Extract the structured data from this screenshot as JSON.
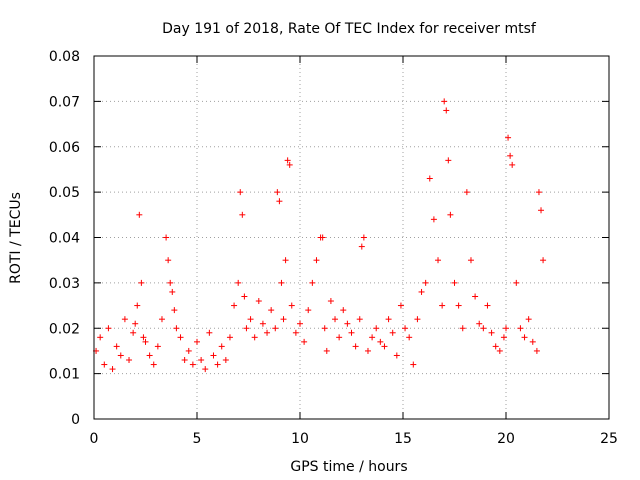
{
  "chart_data": {
    "type": "scatter",
    "title": "Day 191 of 2018, Rate Of TEC Index for receiver mtsf",
    "xlabel": "GPS time / hours",
    "ylabel": "ROTI / TECUs",
    "xlim": [
      0,
      25
    ],
    "ylim": [
      0,
      0.08
    ],
    "xticks": [
      0,
      5,
      10,
      15,
      20,
      25
    ],
    "xtick_labels": [
      "0",
      "5",
      "10",
      "15",
      "20",
      "25"
    ],
    "yticks": [
      0,
      0.01,
      0.02,
      0.03,
      0.04,
      0.05,
      0.06,
      0.07,
      0.08
    ],
    "ytick_labels": [
      "0",
      "0.01",
      "0.02",
      "0.03",
      "0.04",
      "0.05",
      "0.06",
      "0.07",
      "0.08"
    ],
    "grid": true,
    "legend": "none",
    "marker": "+",
    "series": [
      {
        "name": "ROTI",
        "color": "#ff0000",
        "x": [
          0.1,
          0.3,
          0.5,
          0.7,
          0.9,
          1.1,
          1.3,
          1.5,
          1.7,
          1.9,
          2.0,
          2.1,
          2.2,
          2.3,
          2.4,
          2.5,
          2.7,
          2.9,
          3.1,
          3.3,
          3.5,
          3.6,
          3.7,
          3.8,
          3.9,
          4.0,
          4.2,
          4.4,
          4.6,
          4.8,
          5.0,
          5.2,
          5.4,
          5.6,
          5.8,
          6.0,
          6.2,
          6.4,
          6.6,
          6.8,
          7.0,
          7.1,
          7.2,
          7.3,
          7.4,
          7.6,
          7.8,
          8.0,
          8.2,
          8.4,
          8.6,
          8.8,
          8.9,
          9.0,
          9.1,
          9.2,
          9.3,
          9.4,
          9.5,
          9.6,
          9.8,
          10.0,
          10.2,
          10.4,
          10.6,
          10.8,
          11.0,
          11.1,
          11.2,
          11.3,
          11.5,
          11.7,
          11.9,
          12.1,
          12.3,
          12.5,
          12.7,
          12.9,
          13.0,
          13.1,
          13.3,
          13.5,
          13.7,
          13.9,
          14.1,
          14.3,
          14.5,
          14.7,
          14.9,
          15.1,
          15.3,
          15.5,
          15.7,
          15.9,
          16.1,
          16.3,
          16.5,
          16.7,
          16.9,
          17.0,
          17.1,
          17.2,
          17.3,
          17.5,
          17.7,
          17.9,
          18.1,
          18.3,
          18.5,
          18.7,
          18.9,
          19.1,
          19.3,
          19.5,
          19.7,
          19.9,
          20.0,
          20.1,
          20.2,
          20.3,
          20.5,
          20.7,
          20.9,
          21.1,
          21.3,
          21.5,
          21.6,
          21.7,
          21.8
        ],
        "y": [
          0.015,
          0.018,
          0.012,
          0.02,
          0.011,
          0.016,
          0.014,
          0.022,
          0.013,
          0.019,
          0.021,
          0.025,
          0.045,
          0.03,
          0.018,
          0.017,
          0.014,
          0.012,
          0.016,
          0.022,
          0.04,
          0.035,
          0.03,
          0.028,
          0.024,
          0.02,
          0.018,
          0.013,
          0.015,
          0.012,
          0.017,
          0.013,
          0.011,
          0.019,
          0.014,
          0.012,
          0.016,
          0.013,
          0.018,
          0.025,
          0.03,
          0.05,
          0.045,
          0.027,
          0.02,
          0.022,
          0.018,
          0.026,
          0.021,
          0.019,
          0.024,
          0.02,
          0.05,
          0.048,
          0.03,
          0.022,
          0.035,
          0.057,
          0.056,
          0.025,
          0.019,
          0.021,
          0.017,
          0.024,
          0.03,
          0.035,
          0.04,
          0.04,
          0.02,
          0.015,
          0.026,
          0.022,
          0.018,
          0.024,
          0.021,
          0.019,
          0.016,
          0.022,
          0.038,
          0.04,
          0.015,
          0.018,
          0.02,
          0.017,
          0.016,
          0.022,
          0.019,
          0.014,
          0.025,
          0.02,
          0.018,
          0.012,
          0.022,
          0.028,
          0.03,
          0.053,
          0.044,
          0.035,
          0.025,
          0.07,
          0.068,
          0.057,
          0.045,
          0.03,
          0.025,
          0.02,
          0.05,
          0.035,
          0.027,
          0.021,
          0.02,
          0.025,
          0.019,
          0.016,
          0.015,
          0.018,
          0.02,
          0.062,
          0.058,
          0.056,
          0.03,
          0.02,
          0.018,
          0.022,
          0.017,
          0.015,
          0.05,
          0.046,
          0.035
        ]
      }
    ]
  }
}
